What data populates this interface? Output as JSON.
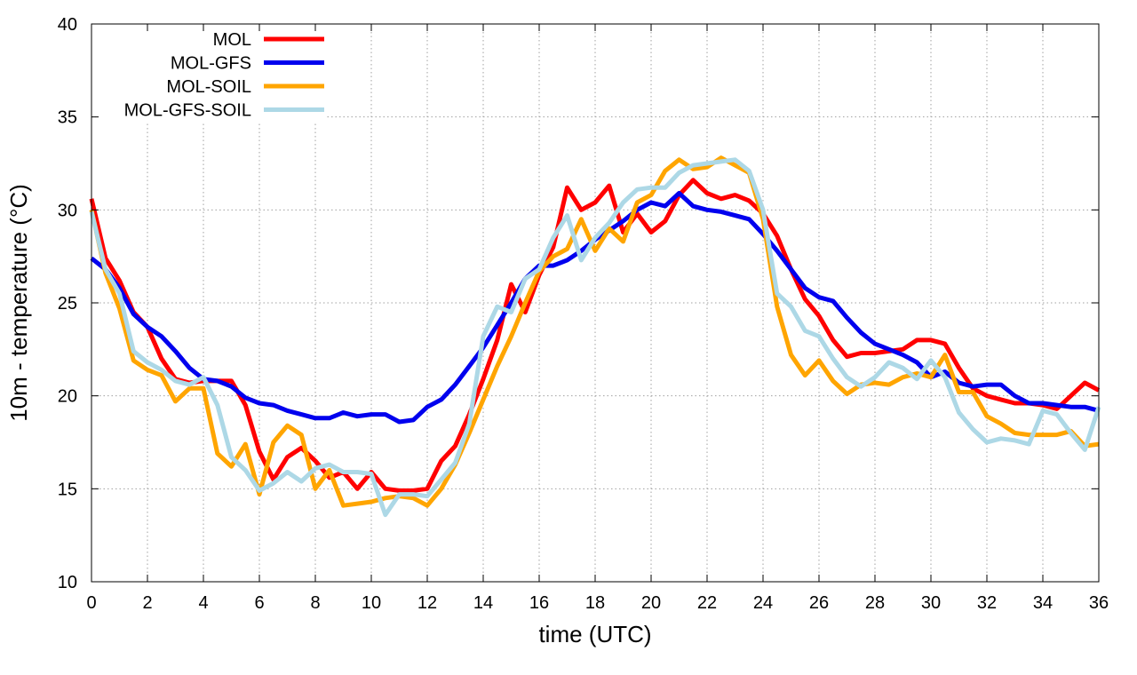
{
  "chart_data": {
    "type": "line",
    "title": "",
    "xlabel": "time (UTC)",
    "ylabel": "10m - temperature (°C)",
    "xlim": [
      0,
      36
    ],
    "ylim": [
      10,
      40
    ],
    "xticks": [
      0,
      2,
      4,
      6,
      8,
      10,
      12,
      14,
      16,
      18,
      20,
      22,
      24,
      26,
      28,
      30,
      32,
      34,
      36
    ],
    "yticks": [
      10,
      15,
      20,
      25,
      30,
      35,
      40
    ],
    "grid": true,
    "legend_position": "top-left",
    "x": [
      0,
      0.5,
      1,
      1.5,
      2,
      2.5,
      3,
      3.5,
      4,
      4.5,
      5,
      5.5,
      6,
      6.5,
      7,
      7.5,
      8,
      8.5,
      9,
      9.5,
      10,
      10.5,
      11,
      11.5,
      12,
      12.5,
      13,
      13.5,
      14,
      14.5,
      15,
      15.5,
      16,
      16.5,
      17,
      17.5,
      18,
      18.5,
      19,
      19.5,
      20,
      20.5,
      21,
      21.5,
      22,
      22.5,
      23,
      23.5,
      24,
      24.5,
      25,
      25.5,
      26,
      26.5,
      27,
      27.5,
      28,
      28.5,
      29,
      29.5,
      30,
      30.5,
      31,
      31.5,
      32,
      32.5,
      33,
      33.5,
      34,
      34.5,
      35,
      35.5,
      36
    ],
    "series": [
      {
        "name": "MOL",
        "color": "#ff0000",
        "values": [
          30.6,
          27.4,
          26.2,
          24.5,
          23.7,
          22.0,
          20.9,
          20.7,
          20.8,
          20.8,
          20.8,
          19.5,
          17.0,
          15.5,
          16.7,
          17.2,
          16.5,
          15.6,
          15.9,
          15.0,
          15.9,
          15.0,
          14.9,
          14.9,
          15.0,
          16.5,
          17.3,
          19.0,
          20.9,
          23.0,
          26.0,
          24.5,
          26.5,
          28.0,
          31.2,
          30.0,
          30.4,
          31.3,
          28.8,
          29.8,
          28.8,
          29.4,
          30.8,
          31.6,
          30.9,
          30.6,
          30.8,
          30.5,
          29.8,
          28.6,
          26.8,
          25.2,
          24.3,
          23.0,
          22.1,
          22.3,
          22.3,
          22.4,
          22.5,
          23.0,
          23.0,
          22.8,
          21.5,
          20.4,
          20.0,
          19.8,
          19.6,
          19.6,
          19.5,
          19.3,
          20.0,
          20.7,
          20.3
        ]
      },
      {
        "name": "MOL-GFS",
        "color": "#0000ee",
        "values": [
          27.4,
          26.8,
          25.8,
          24.4,
          23.7,
          23.2,
          22.4,
          21.5,
          20.9,
          20.8,
          20.5,
          19.9,
          19.6,
          19.5,
          19.2,
          19.0,
          18.8,
          18.8,
          19.1,
          18.9,
          19.0,
          19.0,
          18.6,
          18.7,
          19.4,
          19.8,
          20.6,
          21.6,
          22.6,
          23.8,
          25.0,
          26.3,
          27.0,
          27.0,
          27.3,
          27.8,
          28.4,
          28.9,
          29.4,
          30.0,
          30.4,
          30.2,
          30.9,
          30.2,
          30.0,
          29.9,
          29.7,
          29.5,
          28.7,
          27.8,
          26.8,
          25.8,
          25.3,
          25.1,
          24.2,
          23.4,
          22.8,
          22.5,
          22.2,
          21.8,
          21.0,
          21.3,
          20.7,
          20.5,
          20.6,
          20.6,
          20.0,
          19.6,
          19.6,
          19.5,
          19.4,
          19.4,
          19.2
        ]
      },
      {
        "name": "MOL-SOIL",
        "color": "#ffa500",
        "values": [
          30.0,
          26.6,
          24.7,
          21.9,
          21.4,
          21.1,
          19.7,
          20.4,
          20.4,
          16.9,
          16.2,
          17.4,
          14.7,
          17.5,
          18.4,
          17.9,
          15.0,
          16.0,
          14.1,
          14.2,
          14.3,
          14.5,
          14.6,
          14.5,
          14.1,
          15.0,
          16.3,
          18.0,
          19.8,
          21.6,
          23.2,
          25.0,
          26.7,
          27.5,
          27.9,
          29.5,
          27.8,
          29.0,
          28.3,
          30.4,
          30.8,
          32.1,
          32.7,
          32.2,
          32.3,
          32.8,
          32.4,
          32.0,
          29.5,
          24.8,
          22.2,
          21.1,
          21.9,
          20.8,
          20.1,
          20.6,
          20.7,
          20.6,
          21.0,
          21.2,
          21.0,
          22.2,
          20.2,
          20.2,
          18.9,
          18.5,
          18.0,
          17.9,
          17.9,
          17.9,
          18.1,
          17.3,
          17.4
        ]
      },
      {
        "name": "MOL-GFS-SOIL",
        "color": "#add8e6",
        "values": [
          29.9,
          26.8,
          25.5,
          22.4,
          21.8,
          21.4,
          20.8,
          20.6,
          21.0,
          19.5,
          16.7,
          16.0,
          14.9,
          15.3,
          15.9,
          15.4,
          16.1,
          16.3,
          15.9,
          15.9,
          15.8,
          13.6,
          14.7,
          14.7,
          14.6,
          15.5,
          16.4,
          18.5,
          23.2,
          24.8,
          24.5,
          26.3,
          26.8,
          28.5,
          29.7,
          27.3,
          28.5,
          29.3,
          30.4,
          31.1,
          31.2,
          31.2,
          32.0,
          32.4,
          32.5,
          32.6,
          32.7,
          32.1,
          30.0,
          25.5,
          24.8,
          23.5,
          23.2,
          22.0,
          21.0,
          20.5,
          21.0,
          21.8,
          21.5,
          20.9,
          21.9,
          21.0,
          19.1,
          18.2,
          17.5,
          17.7,
          17.6,
          17.4,
          19.2,
          19.0,
          18.0,
          17.1,
          19.4
        ]
      }
    ]
  }
}
